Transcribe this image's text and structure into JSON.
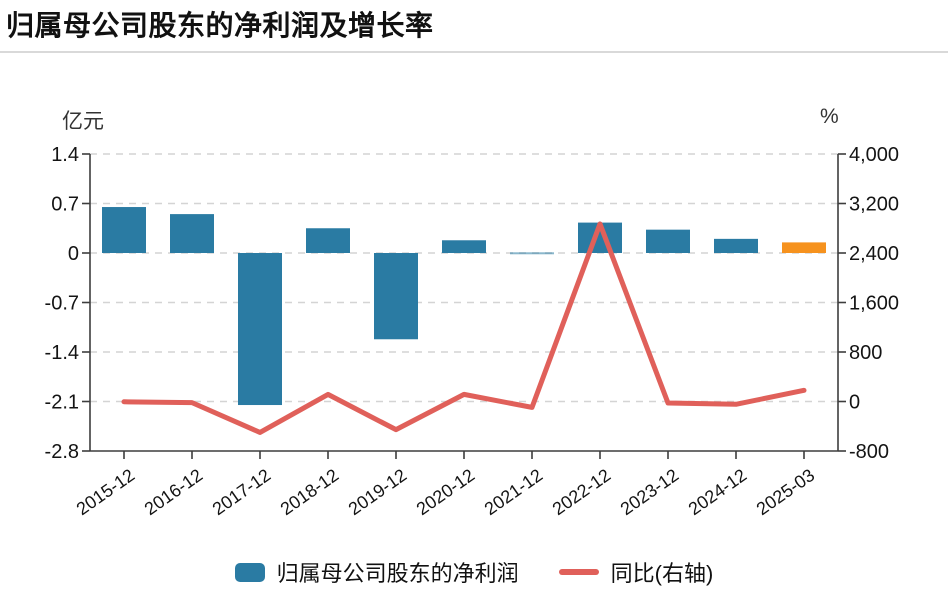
{
  "page": {
    "title": "归属母公司股东的净利润及增长率"
  },
  "axes": {
    "left_unit": "亿元",
    "right_unit": "%",
    "left_ticks": [
      "1.4",
      "0.7",
      "0",
      "-0.7",
      "-1.4",
      "-2.1",
      "-2.8"
    ],
    "right_ticks": [
      "4,000",
      "3,200",
      "2,400",
      "1,600",
      "800",
      "0",
      "-800"
    ]
  },
  "legend": [
    {
      "label": "归属母公司股东的净利润",
      "type": "bar",
      "color": "#2a7ba3"
    },
    {
      "label": "同比(右轴)",
      "type": "line",
      "color": "#e0605a"
    }
  ],
  "colors": {
    "bar_blue": "#2a7ba3",
    "bar_orange": "#f6921e",
    "line_red": "#e0605a",
    "axis": "#3d3d3d",
    "grid": "#d4d4d4",
    "divider": "#d9d9d9"
  },
  "chart_data": {
    "type": "bar+line",
    "title": "归属母公司股东的净利润及增长率",
    "categories": [
      "2015-12",
      "2016-12",
      "2017-12",
      "2018-12",
      "2019-12",
      "2020-12",
      "2021-12",
      "2022-12",
      "2023-12",
      "2024-12",
      "2025-03"
    ],
    "series": [
      {
        "name": "归属母公司股东的净利润",
        "type": "bar",
        "axis": "left",
        "unit": "亿元",
        "values": [
          0.65,
          0.55,
          -2.15,
          0.35,
          -1.22,
          0.18,
          0.01,
          0.43,
          0.33,
          0.2,
          0.15
        ],
        "point_colors": [
          "#2a7ba3",
          "#2a7ba3",
          "#2a7ba3",
          "#2a7ba3",
          "#2a7ba3",
          "#2a7ba3",
          "#2a7ba3",
          "#2a7ba3",
          "#2a7ba3",
          "#2a7ba3",
          "#f6921e"
        ]
      },
      {
        "name": "同比(右轴)",
        "type": "line",
        "axis": "right",
        "unit": "%",
        "values": [
          -5,
          -18,
          -500,
          115,
          -455,
          115,
          -95,
          2870,
          -25,
          -45,
          180
        ]
      }
    ],
    "left_axis": {
      "min": -2.8,
      "max": 1.4,
      "interval": 0.7,
      "label": "亿元"
    },
    "right_axis": {
      "min": -800,
      "max": 4000,
      "interval": 800,
      "label": "%"
    },
    "grid": "horizontal-dashed",
    "legend_position": "bottom"
  }
}
